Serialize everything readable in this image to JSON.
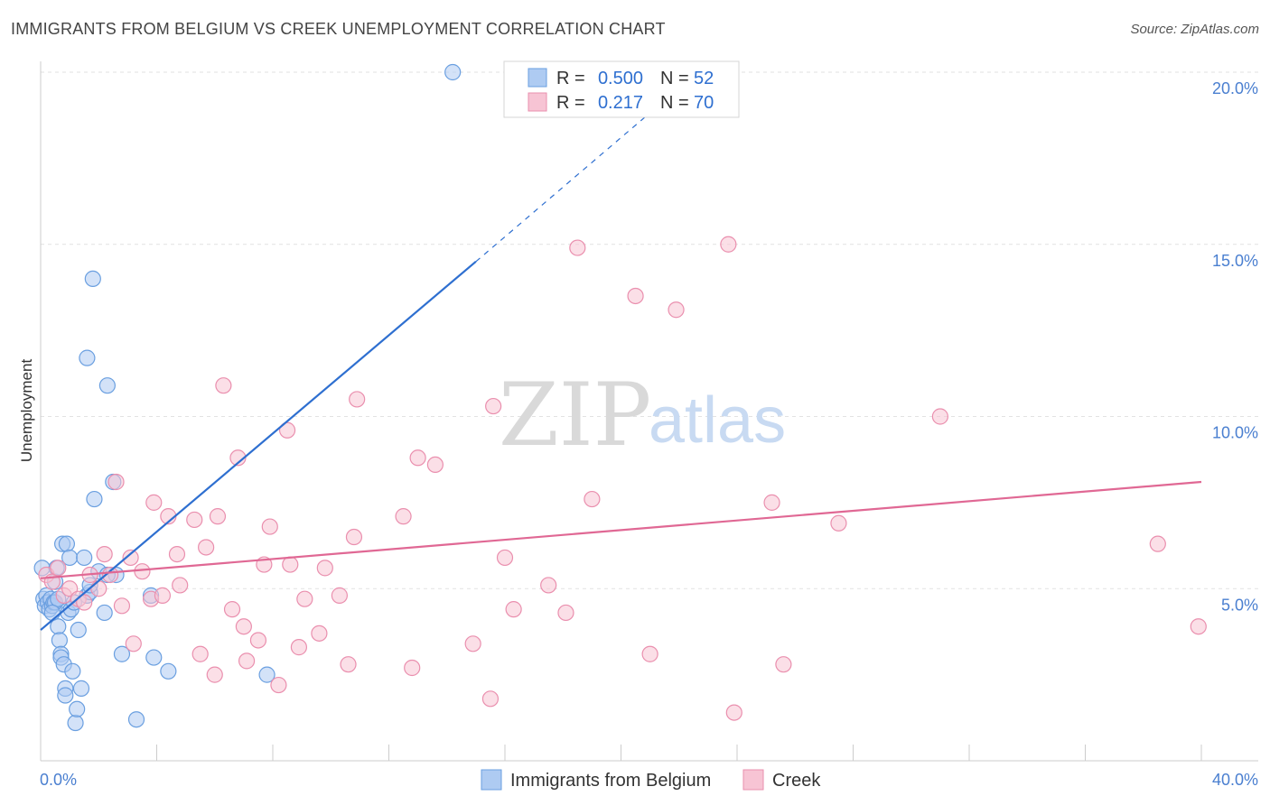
{
  "header": {
    "title": "IMMIGRANTS FROM BELGIUM VS CREEK UNEMPLOYMENT CORRELATION CHART",
    "source": "Source: ZipAtlas.com"
  },
  "watermark": {
    "zip": "ZIP",
    "atlas": "atlas"
  },
  "legend": {
    "r_label": "R =",
    "n_label": "N =",
    "items": [
      {
        "r": "0.500",
        "n": "52"
      },
      {
        "r": "0.217",
        "n": "70"
      }
    ]
  },
  "colors": {
    "belgium_fill": "#aecbf2",
    "belgium_stroke": "#6a9fe0",
    "belgium_line": "#2e6fd0",
    "creek_fill": "#f7c4d4",
    "creek_stroke": "#ea8fae",
    "creek_line": "#e06894",
    "label_blue": "#4a7fd0",
    "grid": "#e2e2e2"
  },
  "chart_data": {
    "type": "scatter",
    "title": "IMMIGRANTS FROM BELGIUM VS CREEK UNEMPLOYMENT CORRELATION CHART",
    "xlabel": "",
    "ylabel": "Unemployment",
    "xlim": [
      0,
      40
    ],
    "ylim": [
      0,
      20.5
    ],
    "x_tick_labels": [
      "0.0%",
      "40.0%"
    ],
    "y_ticks": [
      5,
      10,
      15,
      20
    ],
    "y_tick_labels": [
      "5.0%",
      "10.0%",
      "15.0%",
      "20.0%"
    ],
    "series": [
      {
        "name": "Immigrants from Belgium",
        "color": "#aecbf2",
        "R": 0.5,
        "N": 52,
        "trendline": {
          "x0": 0,
          "y0": 3.8,
          "x1": 15,
          "y1": 14.5,
          "dashed_to_x": 22.5,
          "dashed_to_y": 19.9
        },
        "points": [
          [
            0.05,
            5.6
          ],
          [
            0.1,
            4.7
          ],
          [
            0.15,
            4.5
          ],
          [
            0.2,
            4.8
          ],
          [
            0.25,
            4.6
          ],
          [
            0.3,
            4.4
          ],
          [
            0.35,
            4.7
          ],
          [
            0.4,
            4.5
          ],
          [
            0.45,
            4.6
          ],
          [
            0.5,
            5.2
          ],
          [
            0.5,
            4.6
          ],
          [
            0.55,
            5.6
          ],
          [
            0.6,
            3.9
          ],
          [
            0.65,
            3.5
          ],
          [
            0.7,
            3.1
          ],
          [
            0.7,
            3.0
          ],
          [
            0.75,
            6.3
          ],
          [
            0.8,
            2.8
          ],
          [
            0.85,
            2.1
          ],
          [
            0.85,
            1.9
          ],
          [
            0.9,
            6.3
          ],
          [
            0.95,
            4.3
          ],
          [
            1.0,
            5.9
          ],
          [
            1.05,
            4.4
          ],
          [
            1.1,
            2.6
          ],
          [
            1.2,
            1.1
          ],
          [
            1.25,
            1.5
          ],
          [
            1.3,
            3.8
          ],
          [
            1.4,
            2.1
          ],
          [
            1.5,
            5.9
          ],
          [
            1.6,
            11.7
          ],
          [
            1.6,
            4.8
          ],
          [
            1.7,
            4.9
          ],
          [
            1.8,
            14.0
          ],
          [
            1.85,
            7.6
          ],
          [
            2.0,
            5.5
          ],
          [
            2.2,
            4.3
          ],
          [
            2.3,
            10.9
          ],
          [
            2.5,
            8.1
          ],
          [
            2.6,
            5.4
          ],
          [
            2.8,
            3.1
          ],
          [
            3.3,
            1.2
          ],
          [
            3.8,
            4.8
          ],
          [
            3.9,
            3.0
          ],
          [
            4.4,
            2.6
          ],
          [
            7.8,
            2.5
          ],
          [
            14.2,
            20.0
          ],
          [
            0.6,
            4.7
          ],
          [
            0.4,
            4.3
          ],
          [
            1.15,
            4.6
          ],
          [
            1.7,
            5.1
          ],
          [
            2.3,
            5.4
          ]
        ]
      },
      {
        "name": "Creek",
        "color": "#f7c4d4",
        "R": 0.217,
        "N": 70,
        "trendline": {
          "x0": 0,
          "y0": 5.3,
          "x1": 40,
          "y1": 8.1
        },
        "points": [
          [
            0.2,
            5.4
          ],
          [
            0.4,
            5.2
          ],
          [
            0.6,
            5.6
          ],
          [
            0.8,
            4.8
          ],
          [
            1.0,
            5.0
          ],
          [
            1.3,
            4.7
          ],
          [
            1.5,
            4.6
          ],
          [
            1.7,
            5.4
          ],
          [
            2.0,
            5.0
          ],
          [
            2.2,
            6.0
          ],
          [
            2.4,
            5.4
          ],
          [
            2.6,
            8.1
          ],
          [
            2.8,
            4.5
          ],
          [
            3.1,
            5.9
          ],
          [
            3.2,
            3.4
          ],
          [
            3.5,
            5.5
          ],
          [
            3.8,
            4.7
          ],
          [
            3.9,
            7.5
          ],
          [
            4.2,
            4.8
          ],
          [
            4.4,
            7.1
          ],
          [
            4.7,
            6.0
          ],
          [
            4.8,
            5.1
          ],
          [
            5.3,
            7.0
          ],
          [
            5.5,
            3.1
          ],
          [
            5.7,
            6.2
          ],
          [
            6.0,
            2.5
          ],
          [
            6.1,
            7.1
          ],
          [
            6.3,
            10.9
          ],
          [
            6.6,
            4.4
          ],
          [
            6.8,
            8.8
          ],
          [
            7.0,
            3.9
          ],
          [
            7.1,
            2.9
          ],
          [
            7.5,
            3.5
          ],
          [
            7.7,
            5.7
          ],
          [
            7.9,
            6.8
          ],
          [
            8.2,
            2.2
          ],
          [
            8.5,
            9.6
          ],
          [
            8.6,
            5.7
          ],
          [
            8.9,
            3.3
          ],
          [
            9.1,
            4.7
          ],
          [
            9.6,
            3.7
          ],
          [
            9.8,
            5.6
          ],
          [
            10.3,
            4.8
          ],
          [
            10.6,
            2.8
          ],
          [
            10.8,
            6.5
          ],
          [
            10.9,
            10.5
          ],
          [
            12.5,
            7.1
          ],
          [
            12.8,
            2.7
          ],
          [
            13.0,
            8.8
          ],
          [
            13.6,
            8.6
          ],
          [
            14.9,
            3.4
          ],
          [
            15.5,
            1.8
          ],
          [
            15.6,
            10.3
          ],
          [
            16.0,
            5.9
          ],
          [
            16.3,
            4.4
          ],
          [
            17.5,
            5.1
          ],
          [
            18.1,
            4.3
          ],
          [
            18.5,
            14.9
          ],
          [
            19.0,
            7.6
          ],
          [
            20.5,
            13.5
          ],
          [
            21.0,
            3.1
          ],
          [
            21.9,
            13.1
          ],
          [
            23.7,
            15.0
          ],
          [
            23.9,
            1.4
          ],
          [
            25.2,
            7.5
          ],
          [
            25.6,
            2.8
          ],
          [
            27.5,
            6.9
          ],
          [
            31.0,
            10.0
          ],
          [
            38.5,
            6.3
          ],
          [
            39.9,
            3.9
          ]
        ]
      }
    ]
  }
}
